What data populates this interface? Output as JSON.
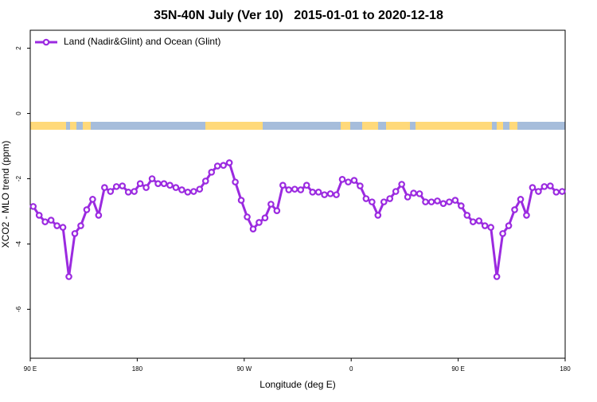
{
  "chart_data": {
    "type": "line",
    "title": "35N-40N July (Ver 10)   2015-01-01 to 2020-12-18",
    "x_label": "Longitude (deg E)",
    "y_label": "XCO2 - MLO trend (ppm)",
    "x": [
      92.5,
      97.5,
      102.5,
      107.5,
      112.5,
      117.5,
      122.5,
      127.5,
      132.5,
      137.5,
      142.5,
      147.5,
      152.5,
      157.5,
      162.5,
      167.5,
      172.5,
      177.5,
      182.5,
      187.5,
      192.5,
      197.5,
      202.5,
      207.5,
      212.5,
      217.5,
      222.5,
      227.5,
      232.5,
      237.5,
      242.5,
      247.5,
      252.5,
      257.5,
      262.5,
      267.5,
      272.5,
      277.5,
      282.5,
      287.5,
      292.5,
      297.5,
      302.5,
      307.5,
      312.5,
      317.5,
      322.5,
      327.5,
      332.5,
      337.5,
      342.5,
      347.5,
      352.5,
      357.5,
      362.5,
      367.5,
      372.5,
      377.5,
      382.5,
      387.5,
      392.5,
      397.5,
      402.5,
      407.5,
      412.5,
      417.5,
      422.5,
      427.5,
      432.5,
      437.5,
      442.5,
      447.5,
      452.5,
      457.5,
      462.5,
      467.5,
      472.5,
      477.5,
      482.5,
      487.5,
      492.5,
      497.5,
      502.5,
      507.5,
      512.5,
      517.5,
      522.5,
      527.5,
      532.5,
      537.5
    ],
    "series": [
      {
        "name": "Land (Nadir&Glint) and Ocean (Glint)",
        "color": "#9b2ae0",
        "values": [
          -2.85,
          -3.12,
          -3.32,
          -3.27,
          -3.44,
          -3.49,
          -5.0,
          -3.68,
          -3.44,
          -2.95,
          -2.63,
          -3.12,
          -2.27,
          -2.39,
          -2.24,
          -2.22,
          -2.41,
          -2.39,
          -2.15,
          -2.27,
          -2.0,
          -2.15,
          -2.15,
          -2.2,
          -2.27,
          -2.34,
          -2.41,
          -2.39,
          -2.32,
          -2.07,
          -1.8,
          -1.61,
          -1.59,
          -1.51,
          -2.1,
          -2.66,
          -3.17,
          -3.54,
          -3.34,
          -3.2,
          -2.78,
          -2.98,
          -2.2,
          -2.34,
          -2.32,
          -2.34,
          -2.2,
          -2.41,
          -2.41,
          -2.49,
          -2.46,
          -2.49,
          -2.02,
          -2.1,
          -2.05,
          -2.22,
          -2.61,
          -2.71,
          -3.12,
          -2.71,
          -2.61,
          -2.39,
          -2.17,
          -2.56,
          -2.44,
          -2.46,
          -2.71,
          -2.71,
          -2.68,
          -2.76,
          -2.71,
          -2.66,
          -2.83,
          -3.12,
          -3.32,
          -3.29,
          -3.44,
          -3.49,
          -5.0,
          -3.68,
          -3.44,
          -2.95,
          -2.63,
          -3.12,
          -2.27,
          -2.39,
          -2.24,
          -2.22,
          -2.41,
          -2.39
        ]
      }
    ],
    "xlim": [
      90,
      540
    ],
    "xticks": [
      {
        "value": 90,
        "label": "90 E"
      },
      {
        "value": 180,
        "label": "180"
      },
      {
        "value": 270,
        "label": "90 W"
      },
      {
        "value": 360,
        "label": "0"
      },
      {
        "value": 450,
        "label": "90 E"
      },
      {
        "value": 540,
        "label": "180"
      }
    ],
    "ylim": [
      -7.5,
      2.55
    ],
    "yticks": [
      2,
      0,
      -2,
      -4,
      -6
    ],
    "legend": "top-left",
    "grid": false
  }
}
